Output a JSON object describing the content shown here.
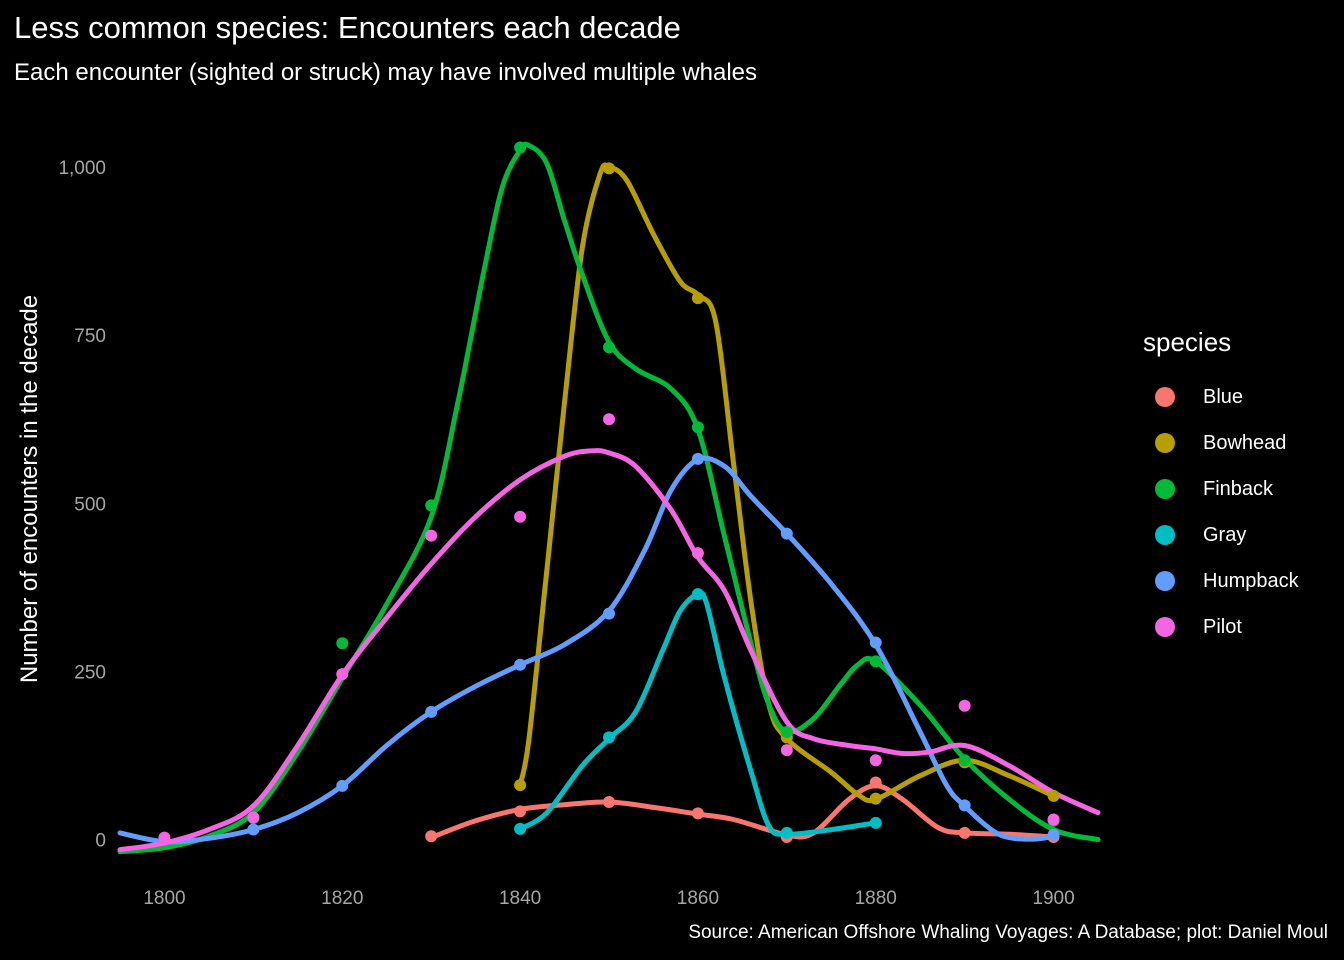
{
  "title": "Less common species: Encounters each decade",
  "subtitle": "Each encounter (sighted or struck) may have involved multiple whales",
  "caption": "Source: American Offshore Whaling Voyages: A Database; plot: Daniel Moul",
  "chart_data": {
    "type": "line",
    "title": "Less common species: Encounters each decade",
    "subtitle": "Each encounter (sighted or struck) may have involved multiple whales",
    "xlabel": "",
    "ylabel": "Number of encounters in the decade",
    "xlim": [
      1795,
      1905
    ],
    "ylim": [
      -60,
      1055
    ],
    "xticks": [
      1800,
      1820,
      1840,
      1860,
      1880,
      1900
    ],
    "yticks": [
      0,
      250,
      500,
      750,
      1000
    ],
    "ytick_labels": [
      "0",
      "250",
      "500",
      "750",
      "1,000"
    ],
    "grid": false,
    "legend_title": "species",
    "legend_position": "right",
    "smoothed": true,
    "series": [
      {
        "name": "Blue",
        "color": "#F8766D",
        "points": [
          [
            1830,
            5
          ],
          [
            1840,
            42
          ],
          [
            1850,
            56
          ],
          [
            1860,
            39
          ],
          [
            1870,
            4
          ],
          [
            1880,
            85
          ],
          [
            1890,
            10
          ],
          [
            1900,
            4
          ]
        ],
        "smooth": [
          [
            1830,
            3
          ],
          [
            1835,
            28
          ],
          [
            1840,
            45
          ],
          [
            1845,
            52
          ],
          [
            1850,
            56
          ],
          [
            1855,
            48
          ],
          [
            1860,
            38
          ],
          [
            1864,
            30
          ],
          [
            1870,
            7
          ],
          [
            1873,
            10
          ],
          [
            1877,
            60
          ],
          [
            1880,
            80
          ],
          [
            1883,
            60
          ],
          [
            1887,
            18
          ],
          [
            1890,
            10
          ],
          [
            1895,
            8
          ],
          [
            1900,
            4
          ]
        ]
      },
      {
        "name": "Bowhead",
        "color": "#B79F00",
        "points": [
          [
            1840,
            81
          ],
          [
            1850,
            998
          ],
          [
            1860,
            805
          ],
          [
            1870,
            152
          ],
          [
            1880,
            61
          ],
          [
            1890,
            115
          ],
          [
            1900,
            65
          ]
        ],
        "smooth": [
          [
            1840,
            81
          ],
          [
            1841,
            150
          ],
          [
            1843,
            400
          ],
          [
            1845,
            650
          ],
          [
            1847,
            880
          ],
          [
            1849,
            990
          ],
          [
            1850,
            1000
          ],
          [
            1852,
            980
          ],
          [
            1855,
            900
          ],
          [
            1858,
            830
          ],
          [
            1860,
            810
          ],
          [
            1862,
            770
          ],
          [
            1864,
            560
          ],
          [
            1866,
            350
          ],
          [
            1868,
            200
          ],
          [
            1870,
            150
          ],
          [
            1875,
            100
          ],
          [
            1878,
            67
          ],
          [
            1880,
            60
          ],
          [
            1885,
            95
          ],
          [
            1890,
            118
          ],
          [
            1895,
            95
          ],
          [
            1900,
            65
          ]
        ]
      },
      {
        "name": "Finback",
        "color": "#00BA38",
        "points": [
          [
            1810,
            32
          ],
          [
            1820,
            292
          ],
          [
            1830,
            497
          ],
          [
            1840,
            1029
          ],
          [
            1850,
            732
          ],
          [
            1860,
            613
          ],
          [
            1870,
            160
          ],
          [
            1880,
            265
          ],
          [
            1890,
            118
          ],
          [
            1900,
            28
          ]
        ],
        "smooth": [
          [
            1795,
            -18
          ],
          [
            1800,
            -12
          ],
          [
            1805,
            5
          ],
          [
            1810,
            40
          ],
          [
            1815,
            130
          ],
          [
            1820,
            240
          ],
          [
            1825,
            350
          ],
          [
            1830,
            480
          ],
          [
            1833,
            650
          ],
          [
            1836,
            850
          ],
          [
            1838,
            970
          ],
          [
            1840,
            1025
          ],
          [
            1841,
            1032
          ],
          [
            1843,
            1005
          ],
          [
            1845,
            920
          ],
          [
            1847,
            840
          ],
          [
            1850,
            740
          ],
          [
            1853,
            700
          ],
          [
            1857,
            670
          ],
          [
            1860,
            610
          ],
          [
            1863,
            450
          ],
          [
            1866,
            290
          ],
          [
            1868,
            200
          ],
          [
            1870,
            160
          ],
          [
            1873,
            180
          ],
          [
            1876,
            230
          ],
          [
            1878,
            260
          ],
          [
            1880,
            265
          ],
          [
            1885,
            200
          ],
          [
            1890,
            120
          ],
          [
            1895,
            60
          ],
          [
            1900,
            15
          ],
          [
            1905,
            0
          ]
        ]
      },
      {
        "name": "Gray",
        "color": "#00BFC4",
        "points": [
          [
            1840,
            16
          ],
          [
            1850,
            152
          ],
          [
            1860,
            365
          ],
          [
            1870,
            10
          ],
          [
            1880,
            25
          ]
        ],
        "smooth": [
          [
            1840,
            16
          ],
          [
            1843,
            40
          ],
          [
            1847,
            110
          ],
          [
            1850,
            150
          ],
          [
            1853,
            190
          ],
          [
            1856,
            280
          ],
          [
            1858,
            340
          ],
          [
            1860,
            365
          ],
          [
            1861,
            350
          ],
          [
            1863,
            240
          ],
          [
            1866,
            100
          ],
          [
            1868,
            20
          ],
          [
            1870,
            8
          ],
          [
            1875,
            15
          ],
          [
            1880,
            25
          ]
        ]
      },
      {
        "name": "Humpback",
        "color": "#619CFF",
        "points": [
          [
            1810,
            15
          ],
          [
            1820,
            80
          ],
          [
            1830,
            190
          ],
          [
            1840,
            260
          ],
          [
            1850,
            336
          ],
          [
            1860,
            566
          ],
          [
            1870,
            455
          ],
          [
            1880,
            293
          ],
          [
            1890,
            51
          ],
          [
            1900,
            7
          ]
        ],
        "smooth": [
          [
            1795,
            10
          ],
          [
            1800,
            -3
          ],
          [
            1805,
            2
          ],
          [
            1810,
            15
          ],
          [
            1815,
            40
          ],
          [
            1820,
            80
          ],
          [
            1825,
            140
          ],
          [
            1830,
            190
          ],
          [
            1835,
            228
          ],
          [
            1840,
            260
          ],
          [
            1845,
            290
          ],
          [
            1850,
            340
          ],
          [
            1854,
            430
          ],
          [
            1857,
            520
          ],
          [
            1860,
            565
          ],
          [
            1863,
            555
          ],
          [
            1866,
            510
          ],
          [
            1870,
            455
          ],
          [
            1875,
            380
          ],
          [
            1880,
            290
          ],
          [
            1885,
            160
          ],
          [
            1888,
            80
          ],
          [
            1890,
            50
          ],
          [
            1893,
            15
          ],
          [
            1895,
            3
          ],
          [
            1898,
            1
          ],
          [
            1900,
            5
          ]
        ]
      },
      {
        "name": "Pilot",
        "color": "#F564E3",
        "points": [
          [
            1800,
            3
          ],
          [
            1810,
            33
          ],
          [
            1820,
            246
          ],
          [
            1830,
            452
          ],
          [
            1840,
            480
          ],
          [
            1850,
            625
          ],
          [
            1860,
            426
          ],
          [
            1870,
            133
          ],
          [
            1880,
            118
          ],
          [
            1890,
            199
          ],
          [
            1900,
            30
          ]
        ],
        "smooth": [
          [
            1795,
            -15
          ],
          [
            1800,
            -5
          ],
          [
            1805,
            15
          ],
          [
            1810,
            50
          ],
          [
            1815,
            140
          ],
          [
            1820,
            245
          ],
          [
            1825,
            330
          ],
          [
            1830,
            410
          ],
          [
            1835,
            480
          ],
          [
            1840,
            535
          ],
          [
            1845,
            570
          ],
          [
            1848,
            578
          ],
          [
            1850,
            575
          ],
          [
            1853,
            555
          ],
          [
            1857,
            490
          ],
          [
            1860,
            420
          ],
          [
            1863,
            370
          ],
          [
            1866,
            280
          ],
          [
            1870,
            175
          ],
          [
            1873,
            150
          ],
          [
            1877,
            140
          ],
          [
            1880,
            135
          ],
          [
            1883,
            128
          ],
          [
            1886,
            130
          ],
          [
            1890,
            140
          ],
          [
            1895,
            110
          ],
          [
            1900,
            70
          ],
          [
            1905,
            40
          ]
        ]
      }
    ]
  }
}
